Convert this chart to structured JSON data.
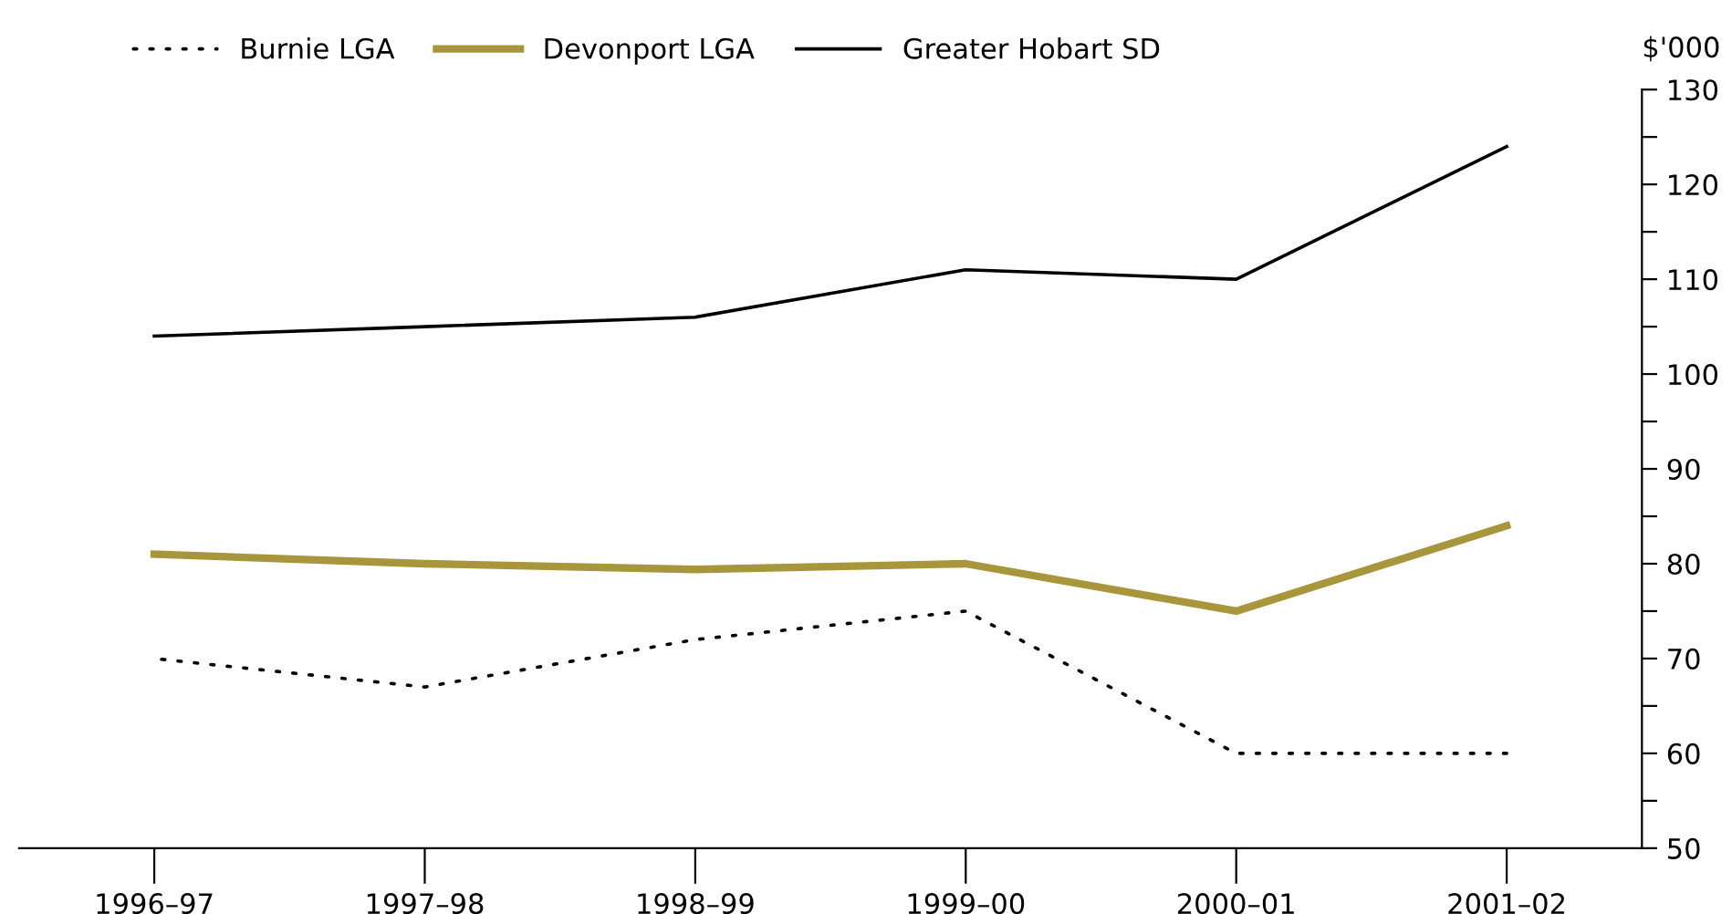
{
  "chart_data": {
    "type": "line",
    "ylabel": "$'000",
    "categories": [
      "1996–97",
      "1997–98",
      "1998–99",
      "1999–00",
      "2000–01",
      "2001–02"
    ],
    "series": [
      {
        "name": "Burnie LGA",
        "color": "#000000",
        "line_style": "dotted",
        "values": [
          70,
          67,
          72,
          75,
          60,
          60
        ]
      },
      {
        "name": "Devonport LGA",
        "color": "#a8963c",
        "line_style": "solid",
        "values": [
          81,
          80,
          79.4,
          80,
          75,
          84
        ]
      },
      {
        "name": "Greater Hobart SD",
        "color": "#000000",
        "line_style": "solid",
        "values": [
          104,
          105,
          106,
          111,
          110,
          124
        ]
      }
    ],
    "ylim": [
      50,
      130
    ],
    "yticks": [
      50,
      {
        "value": 55,
        "label": null
      },
      60,
      {
        "value": 65,
        "label": null
      },
      70,
      {
        "value": 75,
        "label": null
      },
      80,
      {
        "value": 85,
        "label": null
      },
      90,
      {
        "value": 95,
        "label": null
      },
      100,
      {
        "value": 105,
        "label": null
      },
      110,
      {
        "value": 115,
        "label": null
      },
      120,
      {
        "value": 125,
        "label": null
      },
      130
    ],
    "grid": false,
    "legend": "top left",
    "marker": "none"
  }
}
